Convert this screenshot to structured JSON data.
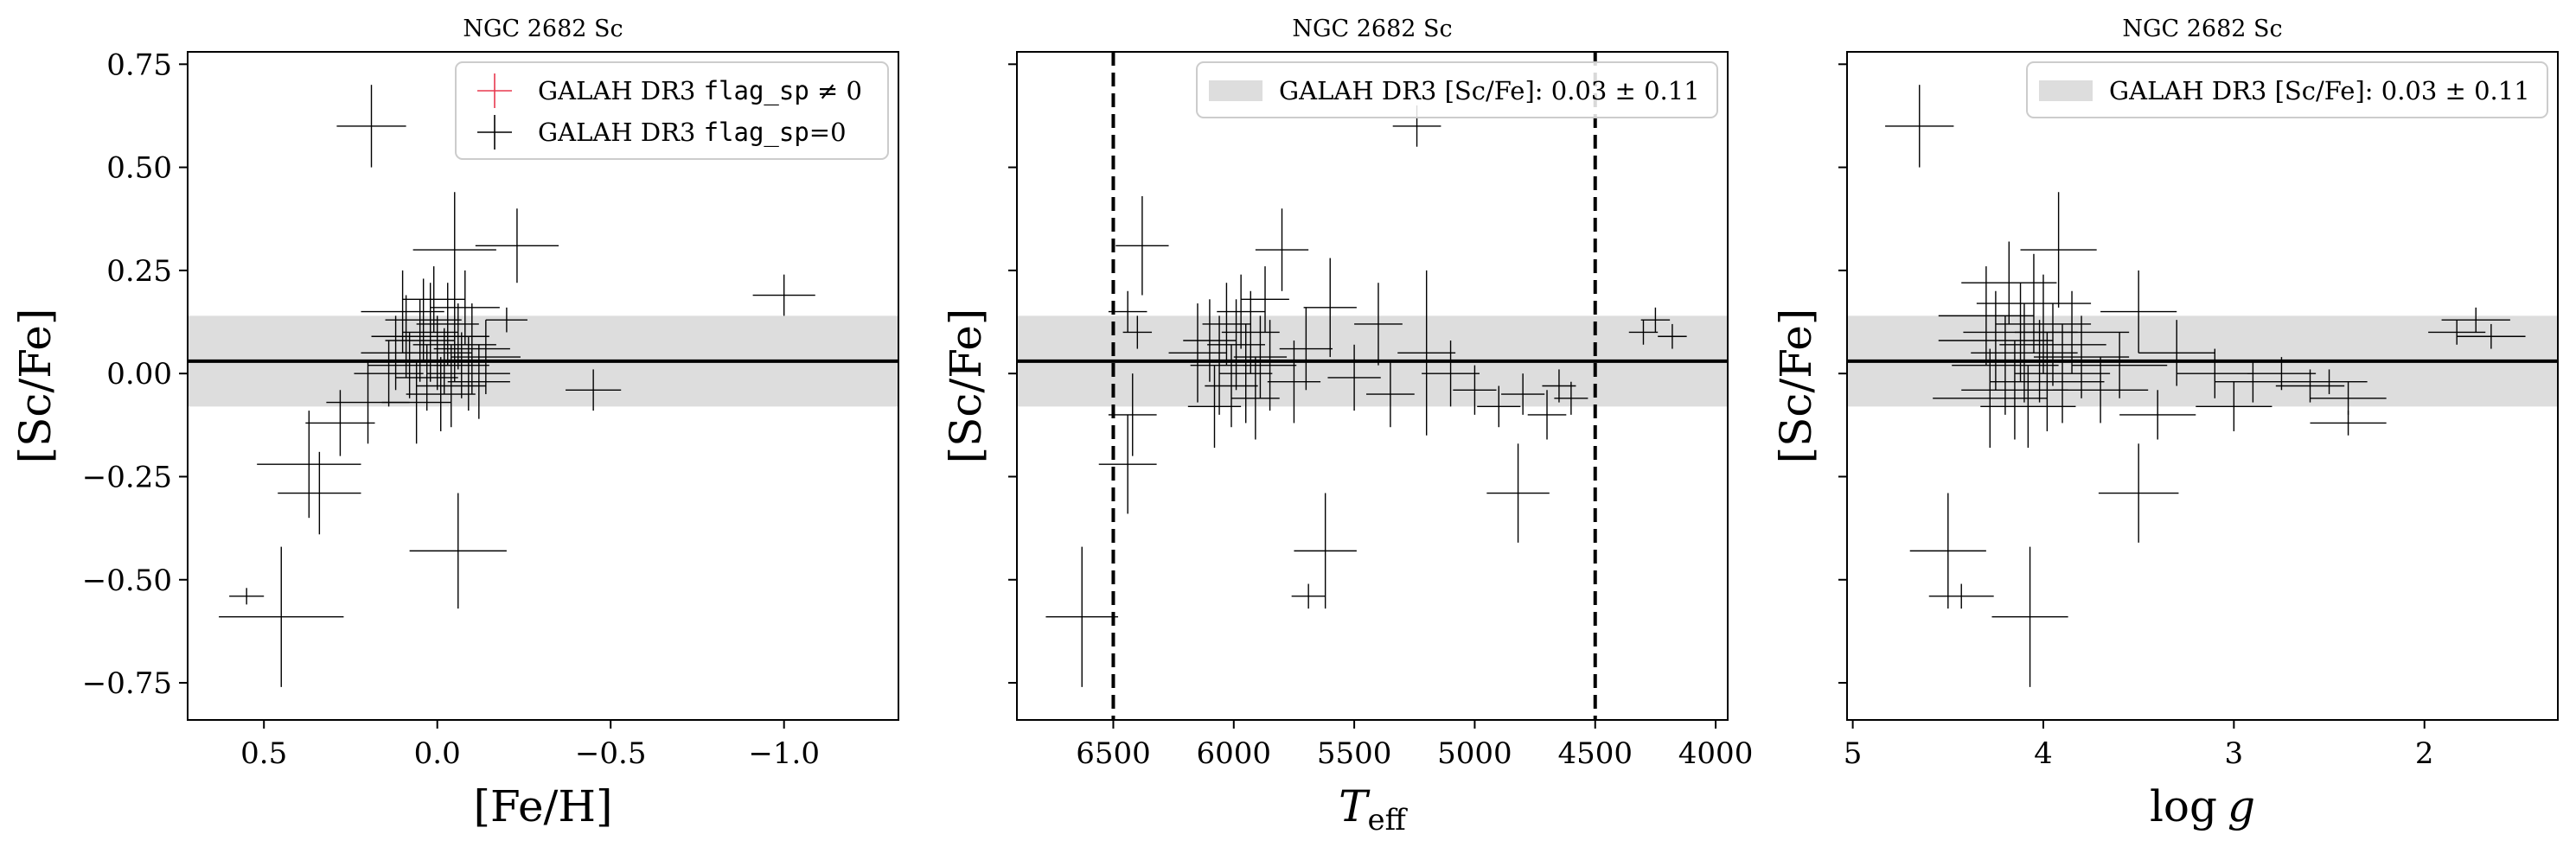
{
  "colors": {
    "band": "#dddddd",
    "points": "#000000",
    "flagged": "#e8384f",
    "frame": "#000000"
  },
  "chart_data": [
    {
      "type": "scatter",
      "title": "NGC 2682 Sc",
      "xlabel": "[Fe/H]",
      "ylabel": "[Sc/Fe]",
      "xlim": [
        0.72,
        -1.33
      ],
      "ylim": [
        -0.84,
        0.78
      ],
      "x_ticks": [
        0.5,
        0.0,
        -0.5,
        -1.0
      ],
      "x_tick_labels": [
        "0.5",
        "0.0",
        "−0.5",
        "−1.0"
      ],
      "y_ticks": [
        0.75,
        0.5,
        0.25,
        0.0,
        -0.25,
        -0.5,
        -0.75
      ],
      "y_tick_labels": [
        "0.75",
        "0.50",
        "0.25",
        "0.00",
        "−0.25",
        "−0.50",
        "−0.75"
      ],
      "y_tick_labels_shown": true,
      "band": {
        "center": 0.03,
        "halfwidth": 0.11
      },
      "vlines": [],
      "legend": {
        "placement": "top-right",
        "entries": [
          {
            "kind": "flagged",
            "prefix": "GALAH DR3 ",
            "code": "flag_sp",
            "suffix": " ≠ 0"
          },
          {
            "kind": "ok",
            "prefix": "GALAH DR3 ",
            "code": "flag_sp",
            "suffix": "=0"
          }
        ]
      },
      "series": [
        {
          "name": "GALAH DR3 flag_sp=0",
          "points": [
            {
              "x": 0.19,
              "y": 0.6,
              "xerr": 0.1,
              "yerr": 0.1
            },
            {
              "x": 0.55,
              "y": -0.54,
              "xerr": 0.05,
              "yerr": 0.02
            },
            {
              "x": 0.45,
              "y": -0.59,
              "xerr": 0.18,
              "yerr": 0.17
            },
            {
              "x": 0.34,
              "y": -0.29,
              "xerr": 0.12,
              "yerr": 0.1
            },
            {
              "x": 0.37,
              "y": -0.22,
              "xerr": 0.15,
              "yerr": 0.13
            },
            {
              "x": 0.28,
              "y": -0.12,
              "xerr": 0.1,
              "yerr": 0.08
            },
            {
              "x": 0.2,
              "y": -0.07,
              "xerr": 0.12,
              "yerr": 0.1
            },
            {
              "x": -0.06,
              "y": -0.43,
              "xerr": 0.14,
              "yerr": 0.14
            },
            {
              "x": -0.23,
              "y": 0.31,
              "xerr": 0.12,
              "yerr": 0.09
            },
            {
              "x": -0.05,
              "y": 0.3,
              "xerr": 0.12,
              "yerr": 0.14
            },
            {
              "x": -0.45,
              "y": -0.04,
              "xerr": 0.08,
              "yerr": 0.05
            },
            {
              "x": -1.0,
              "y": 0.19,
              "xerr": 0.09,
              "yerr": 0.05
            },
            {
              "x": -0.2,
              "y": 0.13,
              "xerr": 0.06,
              "yerr": 0.03
            },
            {
              "x": 0.1,
              "y": 0.15,
              "xerr": 0.12,
              "yerr": 0.1
            },
            {
              "x": 0.12,
              "y": 0.05,
              "xerr": 0.1,
              "yerr": 0.09
            },
            {
              "x": 0.08,
              "y": 0.02,
              "xerr": 0.12,
              "yerr": 0.08
            },
            {
              "x": 0.05,
              "y": 0.08,
              "xerr": 0.1,
              "yerr": 0.1
            },
            {
              "x": 0.03,
              "y": -0.01,
              "xerr": 0.09,
              "yerr": 0.08
            },
            {
              "x": 0.02,
              "y": 0.1,
              "xerr": 0.08,
              "yerr": 0.12
            },
            {
              "x": 0.0,
              "y": 0.05,
              "xerr": 0.1,
              "yerr": 0.09
            },
            {
              "x": -0.02,
              "y": 0.03,
              "xerr": 0.11,
              "yerr": 0.08
            },
            {
              "x": -0.03,
              "y": 0.12,
              "xerr": 0.09,
              "yerr": 0.1
            },
            {
              "x": -0.04,
              "y": -0.03,
              "xerr": 0.1,
              "yerr": 0.1
            },
            {
              "x": -0.05,
              "y": 0.07,
              "xerr": 0.12,
              "yerr": 0.09
            },
            {
              "x": -0.07,
              "y": 0.02,
              "xerr": 0.08,
              "yerr": 0.08
            },
            {
              "x": -0.08,
              "y": 0.16,
              "xerr": 0.1,
              "yerr": 0.09
            },
            {
              "x": -0.1,
              "y": 0.06,
              "xerr": 0.11,
              "yerr": 0.11
            },
            {
              "x": -0.12,
              "y": -0.02,
              "xerr": 0.09,
              "yerr": 0.09
            },
            {
              "x": 0.06,
              "y": -0.07,
              "xerr": 0.1,
              "yerr": 0.1
            },
            {
              "x": 0.01,
              "y": 0.18,
              "xerr": 0.09,
              "yerr": 0.08
            },
            {
              "x": -0.01,
              "y": -0.05,
              "xerr": 0.1,
              "yerr": 0.09
            },
            {
              "x": 0.04,
              "y": 0.13,
              "xerr": 0.11,
              "yerr": 0.1
            },
            {
              "x": -0.06,
              "y": 0.09,
              "xerr": 0.09,
              "yerr": 0.08
            },
            {
              "x": 0.09,
              "y": 0.09,
              "xerr": 0.1,
              "yerr": 0.1
            },
            {
              "x": -0.09,
              "y": 0.0,
              "xerr": 0.12,
              "yerr": 0.09
            },
            {
              "x": 0.14,
              "y": 0.0,
              "xerr": 0.1,
              "yerr": 0.08
            },
            {
              "x": -0.14,
              "y": 0.04,
              "xerr": 0.1,
              "yerr": 0.09
            }
          ]
        }
      ]
    },
    {
      "type": "scatter",
      "title": "NGC 2682 Sc",
      "xlabel": "T_eff",
      "xlabel_main": "T",
      "xlabel_sub": "eff",
      "ylabel": "[Sc/Fe]",
      "xlim": [
        6900,
        3950
      ],
      "ylim": [
        -0.84,
        0.78
      ],
      "x_ticks": [
        6500,
        6000,
        5500,
        5000,
        4500,
        4000
      ],
      "x_tick_labels": [
        "6500",
        "6000",
        "5500",
        "5000",
        "4500",
        "4000"
      ],
      "y_ticks": [
        0.75,
        0.5,
        0.25,
        0.0,
        -0.25,
        -0.5,
        -0.75
      ],
      "y_tick_labels": [],
      "y_tick_labels_shown": false,
      "band": {
        "center": 0.03,
        "halfwidth": 0.11
      },
      "vlines": [
        6500,
        4500
      ],
      "legend": {
        "placement": "top-right",
        "entries": [
          {
            "kind": "band",
            "prefix": "GALAH DR3 [Sc/Fe]: 0.03 ± 0.11",
            "code": "",
            "suffix": ""
          }
        ]
      },
      "series": [
        {
          "name": "GALAH DR3 flag_sp=0",
          "points": [
            {
              "x": 6630,
              "y": -0.59,
              "xerr": 150,
              "yerr": 0.17
            },
            {
              "x": 6440,
              "y": -0.22,
              "xerr": 120,
              "yerr": 0.12
            },
            {
              "x": 6420,
              "y": -0.1,
              "xerr": 100,
              "yerr": 0.1
            },
            {
              "x": 6380,
              "y": 0.31,
              "xerr": 110,
              "yerr": 0.12
            },
            {
              "x": 6440,
              "y": 0.15,
              "xerr": 80,
              "yerr": 0.05
            },
            {
              "x": 6400,
              "y": 0.1,
              "xerr": 60,
              "yerr": 0.04
            },
            {
              "x": 5240,
              "y": 0.6,
              "xerr": 100,
              "yerr": 0.05
            },
            {
              "x": 5620,
              "y": -0.43,
              "xerr": 130,
              "yerr": 0.14
            },
            {
              "x": 5690,
              "y": -0.54,
              "xerr": 70,
              "yerr": 0.03
            },
            {
              "x": 4820,
              "y": -0.29,
              "xerr": 130,
              "yerr": 0.12
            },
            {
              "x": 4300,
              "y": 0.1,
              "xerr": 60,
              "yerr": 0.03
            },
            {
              "x": 4250,
              "y": 0.13,
              "xerr": 60,
              "yerr": 0.03
            },
            {
              "x": 4180,
              "y": 0.09,
              "xerr": 60,
              "yerr": 0.03
            },
            {
              "x": 5800,
              "y": 0.3,
              "xerr": 110,
              "yerr": 0.1
            },
            {
              "x": 5600,
              "y": 0.16,
              "xerr": 110,
              "yerr": 0.12
            },
            {
              "x": 5400,
              "y": 0.12,
              "xerr": 100,
              "yerr": 0.1
            },
            {
              "x": 5200,
              "y": 0.05,
              "xerr": 120,
              "yerr": 0.2
            },
            {
              "x": 5100,
              "y": 0.0,
              "xerr": 120,
              "yerr": 0.08
            },
            {
              "x": 5000,
              "y": -0.04,
              "xerr": 90,
              "yerr": 0.06
            },
            {
              "x": 4900,
              "y": -0.08,
              "xerr": 90,
              "yerr": 0.05
            },
            {
              "x": 4800,
              "y": -0.05,
              "xerr": 90,
              "yerr": 0.05
            },
            {
              "x": 4700,
              "y": -0.1,
              "xerr": 80,
              "yerr": 0.06
            },
            {
              "x": 4650,
              "y": -0.03,
              "xerr": 70,
              "yerr": 0.04
            },
            {
              "x": 4600,
              "y": -0.06,
              "xerr": 70,
              "yerr": 0.04
            },
            {
              "x": 6150,
              "y": 0.05,
              "xerr": 120,
              "yerr": 0.12
            },
            {
              "x": 6100,
              "y": 0.08,
              "xerr": 110,
              "yerr": 0.1
            },
            {
              "x": 6060,
              "y": 0.02,
              "xerr": 120,
              "yerr": 0.12
            },
            {
              "x": 6030,
              "y": 0.12,
              "xerr": 100,
              "yerr": 0.1
            },
            {
              "x": 6010,
              "y": -0.03,
              "xerr": 110,
              "yerr": 0.1
            },
            {
              "x": 5990,
              "y": 0.07,
              "xerr": 120,
              "yerr": 0.11
            },
            {
              "x": 5970,
              "y": 0.15,
              "xerr": 100,
              "yerr": 0.09
            },
            {
              "x": 5950,
              "y": 0.0,
              "xerr": 110,
              "yerr": 0.12
            },
            {
              "x": 5930,
              "y": 0.1,
              "xerr": 120,
              "yerr": 0.1
            },
            {
              "x": 5910,
              "y": -0.06,
              "xerr": 100,
              "yerr": 0.1
            },
            {
              "x": 5890,
              "y": 0.04,
              "xerr": 110,
              "yerr": 0.1
            },
            {
              "x": 6080,
              "y": -0.08,
              "xerr": 110,
              "yerr": 0.1
            },
            {
              "x": 5870,
              "y": 0.18,
              "xerr": 100,
              "yerr": 0.08
            },
            {
              "x": 5850,
              "y": 0.02,
              "xerr": 110,
              "yerr": 0.11
            },
            {
              "x": 5750,
              "y": -0.02,
              "xerr": 110,
              "yerr": 0.1
            },
            {
              "x": 5700,
              "y": 0.06,
              "xerr": 110,
              "yerr": 0.1
            },
            {
              "x": 5500,
              "y": -0.01,
              "xerr": 110,
              "yerr": 0.08
            },
            {
              "x": 5350,
              "y": -0.05,
              "xerr": 100,
              "yerr": 0.08
            }
          ]
        }
      ]
    },
    {
      "type": "scatter",
      "title": "NGC 2682 Sc",
      "xlabel": "log g",
      "xlabel_main": "log",
      "xlabel_sub": "g",
      "ylabel": "[Sc/Fe]",
      "xlim": [
        5.03,
        1.3
      ],
      "ylim": [
        -0.84,
        0.78
      ],
      "x_ticks": [
        5,
        4,
        3,
        2
      ],
      "x_tick_labels": [
        "5",
        "4",
        "3",
        "2"
      ],
      "y_ticks": [
        0.75,
        0.5,
        0.25,
        0.0,
        -0.25,
        -0.5,
        -0.75
      ],
      "y_tick_labels": [],
      "y_tick_labels_shown": false,
      "band": {
        "center": 0.03,
        "halfwidth": 0.11
      },
      "vlines": [],
      "legend": {
        "placement": "top-right",
        "entries": [
          {
            "kind": "band",
            "prefix": "GALAH DR3 [Sc/Fe]: 0.03 ± 0.11",
            "code": "",
            "suffix": ""
          }
        ]
      },
      "series": [
        {
          "name": "GALAH DR3 flag_sp=0",
          "points": [
            {
              "x": 4.65,
              "y": 0.6,
              "xerr": 0.18,
              "yerr": 0.1
            },
            {
              "x": 4.5,
              "y": -0.43,
              "xerr": 0.2,
              "yerr": 0.14
            },
            {
              "x": 4.43,
              "y": -0.54,
              "xerr": 0.17,
              "yerr": 0.03
            },
            {
              "x": 4.07,
              "y": -0.59,
              "xerr": 0.2,
              "yerr": 0.17
            },
            {
              "x": 3.5,
              "y": -0.29,
              "xerr": 0.21,
              "yerr": 0.12
            },
            {
              "x": 1.83,
              "y": 0.1,
              "xerr": 0.15,
              "yerr": 0.03
            },
            {
              "x": 1.73,
              "y": 0.13,
              "xerr": 0.18,
              "yerr": 0.03
            },
            {
              "x": 1.65,
              "y": 0.09,
              "xerr": 0.18,
              "yerr": 0.03
            },
            {
              "x": 3.5,
              "y": 0.15,
              "xerr": 0.2,
              "yerr": 0.1
            },
            {
              "x": 3.3,
              "y": 0.05,
              "xerr": 0.2,
              "yerr": 0.08
            },
            {
              "x": 3.1,
              "y": 0.0,
              "xerr": 0.2,
              "yerr": 0.06
            },
            {
              "x": 2.9,
              "y": -0.02,
              "xerr": 0.2,
              "yerr": 0.05
            },
            {
              "x": 2.75,
              "y": 0.0,
              "xerr": 0.18,
              "yerr": 0.04
            },
            {
              "x": 2.6,
              "y": -0.03,
              "xerr": 0.18,
              "yerr": 0.04
            },
            {
              "x": 2.4,
              "y": -0.06,
              "xerr": 0.2,
              "yerr": 0.04
            },
            {
              "x": 2.4,
              "y": -0.12,
              "xerr": 0.2,
              "yerr": 0.03
            },
            {
              "x": 3.0,
              "y": -0.08,
              "xerr": 0.2,
              "yerr": 0.06
            },
            {
              "x": 2.5,
              "y": -0.02,
              "xerr": 0.2,
              "yerr": 0.03
            },
            {
              "x": 3.4,
              "y": -0.1,
              "xerr": 0.2,
              "yerr": 0.06
            },
            {
              "x": 4.3,
              "y": 0.14,
              "xerr": 0.25,
              "yerr": 0.12
            },
            {
              "x": 4.25,
              "y": 0.08,
              "xerr": 0.3,
              "yerr": 0.12
            },
            {
              "x": 4.2,
              "y": 0.02,
              "xerr": 0.28,
              "yerr": 0.12
            },
            {
              "x": 4.18,
              "y": 0.22,
              "xerr": 0.25,
              "yerr": 0.1
            },
            {
              "x": 4.15,
              "y": -0.04,
              "xerr": 0.28,
              "yerr": 0.12
            },
            {
              "x": 4.12,
              "y": 0.1,
              "xerr": 0.3,
              "yerr": 0.12
            },
            {
              "x": 4.1,
              "y": 0.05,
              "xerr": 0.28,
              "yerr": 0.12
            },
            {
              "x": 4.08,
              "y": -0.08,
              "xerr": 0.25,
              "yerr": 0.1
            },
            {
              "x": 4.05,
              "y": 0.17,
              "xerr": 0.3,
              "yerr": 0.12
            },
            {
              "x": 4.02,
              "y": 0.03,
              "xerr": 0.28,
              "yerr": 0.1
            },
            {
              "x": 4.0,
              "y": 0.12,
              "xerr": 0.25,
              "yerr": 0.12
            },
            {
              "x": 3.98,
              "y": -0.02,
              "xerr": 0.3,
              "yerr": 0.12
            },
            {
              "x": 3.95,
              "y": 0.07,
              "xerr": 0.28,
              "yerr": 0.1
            },
            {
              "x": 3.92,
              "y": 0.3,
              "xerr": 0.2,
              "yerr": 0.14
            },
            {
              "x": 3.9,
              "y": 0.0,
              "xerr": 0.25,
              "yerr": 0.12
            },
            {
              "x": 3.85,
              "y": 0.1,
              "xerr": 0.3,
              "yerr": 0.1
            },
            {
              "x": 3.8,
              "y": 0.04,
              "xerr": 0.25,
              "yerr": 0.1
            },
            {
              "x": 4.28,
              "y": -0.06,
              "xerr": 0.3,
              "yerr": 0.12
            },
            {
              "x": 3.7,
              "y": -0.04,
              "xerr": 0.25,
              "yerr": 0.08
            },
            {
              "x": 3.6,
              "y": 0.02,
              "xerr": 0.25,
              "yerr": 0.08
            }
          ]
        }
      ]
    }
  ]
}
